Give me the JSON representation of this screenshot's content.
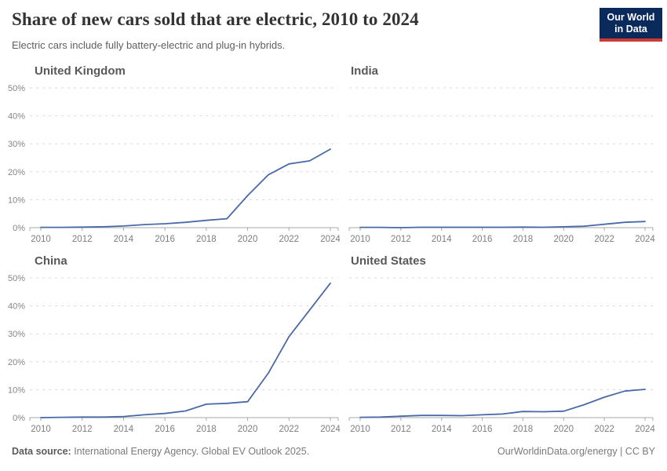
{
  "header": {
    "title": "Share of new cars sold that are electric, 2010 to 2024",
    "subtitle": "Electric cars include fully battery-electric and plug-in hybrids.",
    "logo": {
      "line1": "Our World",
      "line2": "in Data",
      "bg": "#0a2a5c",
      "accent": "#cc3b33"
    }
  },
  "chart_data": {
    "type": "line",
    "title": "Share of new cars sold that are electric, 2010 to 2024",
    "layout": "2x2 small multiples; y-axis labels shown only on left column; dashed horizontal gridlines",
    "x": [
      2010,
      2011,
      2012,
      2013,
      2014,
      2015,
      2016,
      2017,
      2018,
      2019,
      2020,
      2021,
      2022,
      2023,
      2024
    ],
    "x_ticks": [
      2010,
      2012,
      2014,
      2016,
      2018,
      2020,
      2022,
      2024
    ],
    "y_tick_values": [
      0,
      10,
      20,
      30,
      40,
      50
    ],
    "y_tick_labels": [
      "0%",
      "10%",
      "20%",
      "30%",
      "40%",
      "50%"
    ],
    "ylim": [
      0,
      50
    ],
    "unit": "%",
    "line_color": "#4a69a8",
    "grid_color": "#d8d8d8",
    "axis_color": "#a9a9a9",
    "series": [
      {
        "name": "United Kingdom",
        "values": [
          0.1,
          0.1,
          0.2,
          0.3,
          0.6,
          1.1,
          1.4,
          1.9,
          2.6,
          3.2,
          11.5,
          18.9,
          22.8,
          23.9,
          28.1
        ]
      },
      {
        "name": "India",
        "values": [
          0.1,
          0.1,
          0.0,
          0.15,
          0.15,
          0.15,
          0.15,
          0.15,
          0.2,
          0.15,
          0.3,
          0.5,
          1.2,
          1.9,
          2.2
        ]
      },
      {
        "name": "China",
        "values": [
          0.0,
          0.1,
          0.2,
          0.2,
          0.4,
          1.0,
          1.5,
          2.4,
          4.8,
          5.1,
          5.7,
          15.9,
          29.0,
          38.5,
          48.1
        ]
      },
      {
        "name": "United States",
        "values": [
          0.1,
          0.2,
          0.5,
          0.8,
          0.8,
          0.7,
          1.0,
          1.3,
          2.2,
          2.1,
          2.3,
          4.6,
          7.3,
          9.5,
          10.1
        ]
      }
    ]
  },
  "footer": {
    "source_label": "Data source:",
    "source_text": " International Energy Agency. Global EV Outlook 2025.",
    "right_text": "OurWorldinData.org/energy | CC BY"
  }
}
